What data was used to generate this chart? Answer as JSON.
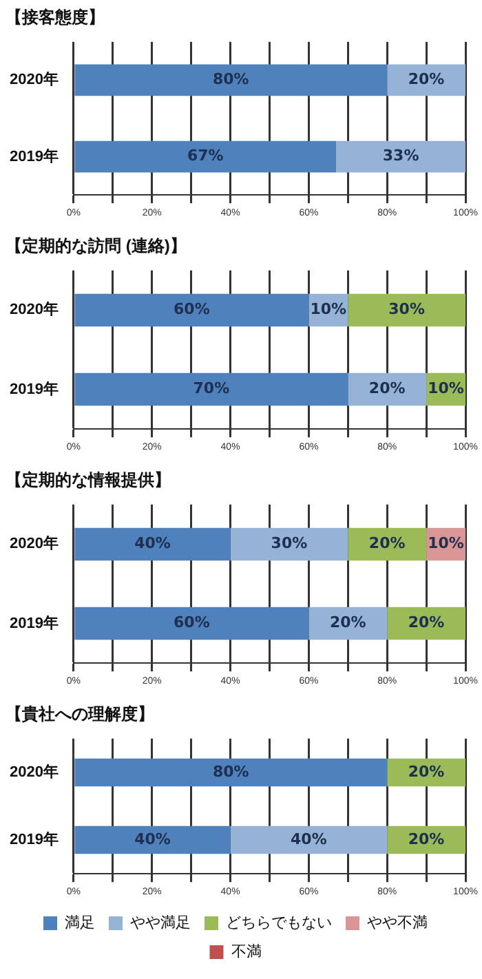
{
  "chart_data": [
    {
      "type": "bar",
      "title": "【接客態度】",
      "orientation": "horizontal",
      "stacked": true,
      "categories": [
        "2020年",
        "2019年"
      ],
      "xlim": [
        0,
        100
      ],
      "xticks": [
        {
          "value": 0,
          "label": "0%"
        },
        {
          "value": 10,
          "label": null
        },
        {
          "value": 20,
          "label": "20%"
        },
        {
          "value": 30,
          "label": null
        },
        {
          "value": 40,
          "label": "40%"
        },
        {
          "value": 50,
          "label": null
        },
        {
          "value": 60,
          "label": "60%"
        },
        {
          "value": 70,
          "label": null
        },
        {
          "value": 80,
          "label": "80%"
        },
        {
          "value": 90,
          "label": null
        },
        {
          "value": 100,
          "label": "100%"
        }
      ],
      "grid": "x",
      "legend": false,
      "series": [
        {
          "color": "#4f81bd",
          "values": [
            80,
            67
          ],
          "value_labels": [
            "80%",
            "67%"
          ]
        },
        {
          "color": "#95b3d7",
          "values": [
            20,
            33
          ],
          "value_labels": [
            "20%",
            "33%"
          ]
        }
      ]
    },
    {
      "type": "bar",
      "title": "【定期的な訪問 (連絡)】",
      "orientation": "horizontal",
      "stacked": true,
      "categories": [
        "2020年",
        "2019年"
      ],
      "xlim": [
        0,
        100
      ],
      "xticks": [
        {
          "value": 0,
          "label": "0%"
        },
        {
          "value": 10,
          "label": null
        },
        {
          "value": 20,
          "label": "20%"
        },
        {
          "value": 30,
          "label": null
        },
        {
          "value": 40,
          "label": "40%"
        },
        {
          "value": 50,
          "label": null
        },
        {
          "value": 60,
          "label": "60%"
        },
        {
          "value": 70,
          "label": null
        },
        {
          "value": 80,
          "label": "80%"
        },
        {
          "value": 90,
          "label": null
        },
        {
          "value": 100,
          "label": "100%"
        }
      ],
      "grid": "x",
      "legend": false,
      "series": [
        {
          "color": "#4f81bd",
          "values": [
            60,
            70
          ],
          "value_labels": [
            "60%",
            "70%"
          ]
        },
        {
          "color": "#95b3d7",
          "values": [
            10,
            20
          ],
          "value_labels": [
            "10%",
            "20%"
          ]
        },
        {
          "color": "#9bbb59",
          "values": [
            30,
            10
          ],
          "value_labels": [
            "30%",
            "10%"
          ]
        }
      ]
    },
    {
      "type": "bar",
      "title": "【定期的な情報提供】",
      "orientation": "horizontal",
      "stacked": true,
      "categories": [
        "2020年",
        "2019年"
      ],
      "xlim": [
        0,
        100
      ],
      "xticks": [
        {
          "value": 0,
          "label": "0%"
        },
        {
          "value": 10,
          "label": null
        },
        {
          "value": 20,
          "label": "20%"
        },
        {
          "value": 30,
          "label": null
        },
        {
          "value": 40,
          "label": "40%"
        },
        {
          "value": 50,
          "label": null
        },
        {
          "value": 60,
          "label": "60%"
        },
        {
          "value": 70,
          "label": null
        },
        {
          "value": 80,
          "label": "80%"
        },
        {
          "value": 90,
          "label": null
        },
        {
          "value": 100,
          "label": "100%"
        }
      ],
      "grid": "x",
      "legend": false,
      "series": [
        {
          "color": "#4f81bd",
          "values": [
            40,
            60
          ],
          "value_labels": [
            "40%",
            "60%"
          ]
        },
        {
          "color": "#95b3d7",
          "values": [
            30,
            20
          ],
          "value_labels": [
            "30%",
            "20%"
          ]
        },
        {
          "color": "#9bbb59",
          "values": [
            20,
            20
          ],
          "value_labels": [
            "20%",
            "20%"
          ]
        },
        {
          "color": "#d99694",
          "values": [
            10,
            null
          ],
          "value_labels": [
            "10%",
            null
          ]
        }
      ]
    },
    {
      "type": "bar",
      "title": "【貴社への理解度】",
      "orientation": "horizontal",
      "stacked": true,
      "categories": [
        "2020年",
        "2019年"
      ],
      "xlim": [
        0,
        100
      ],
      "xticks": [
        {
          "value": 0,
          "label": "0%"
        },
        {
          "value": 10,
          "label": null
        },
        {
          "value": 20,
          "label": "20%"
        },
        {
          "value": 30,
          "label": null
        },
        {
          "value": 40,
          "label": "40%"
        },
        {
          "value": 50,
          "label": null
        },
        {
          "value": 60,
          "label": "60%"
        },
        {
          "value": 70,
          "label": null
        },
        {
          "value": 80,
          "label": "80%"
        },
        {
          "value": 90,
          "label": null
        },
        {
          "value": 100,
          "label": "100%"
        }
      ],
      "grid": "x",
      "legend": "bottom",
      "series": [
        {
          "name": "満足",
          "color": "#4f81bd",
          "values": [
            80,
            40
          ],
          "value_labels": [
            "80%",
            "40%"
          ]
        },
        {
          "name": "やや満足",
          "color": "#95b3d7",
          "values": [
            null,
            40
          ],
          "value_labels": [
            null,
            "40%"
          ]
        },
        {
          "name": "どちらでもない",
          "color": "#9bbb59",
          "values": [
            20,
            20
          ],
          "value_labels": [
            "20%",
            "20%"
          ]
        },
        {
          "name": "やや不満",
          "color": "#d99694",
          "values": [
            null,
            null
          ]
        },
        {
          "name": "不満",
          "color": "#c0504d",
          "values": [
            null,
            null
          ]
        }
      ]
    }
  ]
}
